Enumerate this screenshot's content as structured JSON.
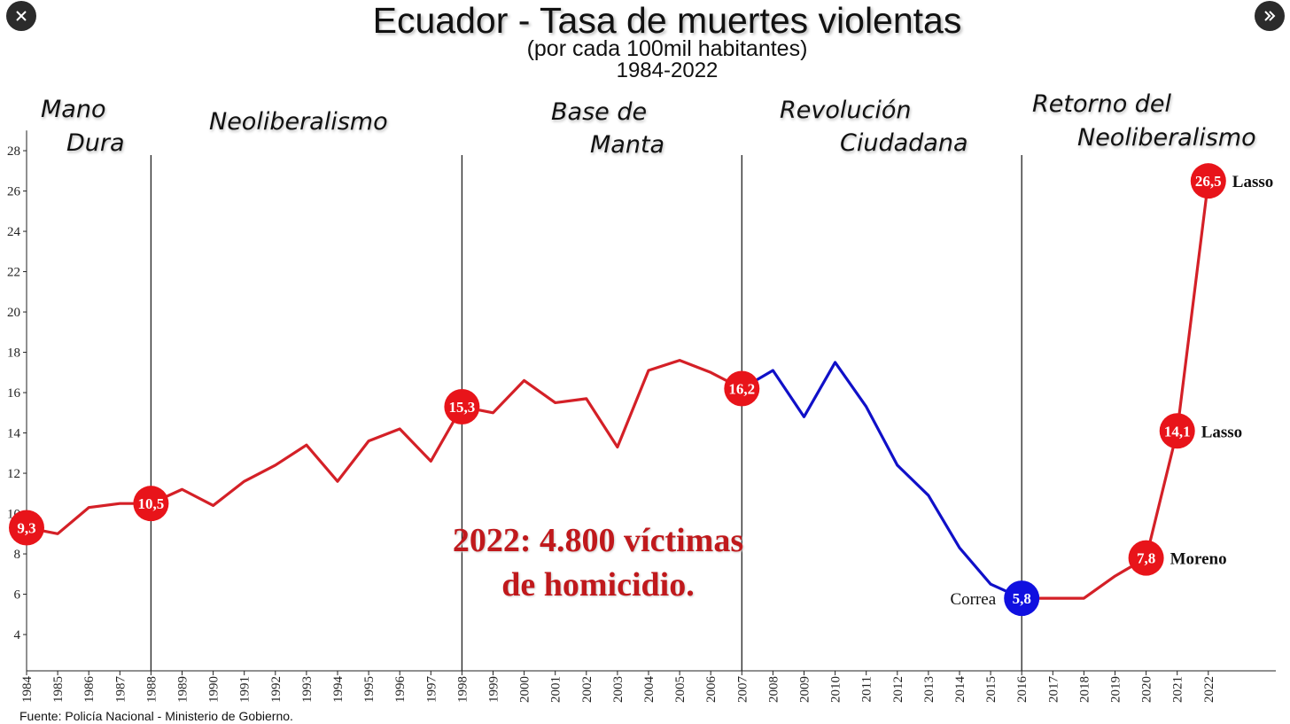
{
  "ui": {
    "close_icon": "close-icon",
    "next_icon": "double-chevron-right-icon"
  },
  "title": "Ecuador - Tasa de muertes violentas",
  "subtitle": "(por cada 100mil habitantes)",
  "years_label": "1984-2022",
  "eras": [
    "Mano",
    "Dura",
    "Neoliberalismo",
    "Base de",
    "Manta",
    "Revolución",
    "Ciudadana",
    "Retorno del",
    "Neoliberalismo"
  ],
  "callout": [
    "2022: 4.800 víctimas",
    "de homicidio."
  ],
  "source": "Fuente: Policía Nacional - Ministerio de Gobierno.",
  "colors": {
    "red_series": "#d42027",
    "blue_series": "#1010c8",
    "callout": "#c0191c"
  },
  "chart_data": {
    "type": "line",
    "x": [
      1984,
      1985,
      1986,
      1987,
      1988,
      1989,
      1990,
      1991,
      1992,
      1993,
      1994,
      1995,
      1996,
      1997,
      1998,
      1999,
      2000,
      2001,
      2002,
      2003,
      2004,
      2005,
      2006,
      2007,
      2008,
      2009,
      2010,
      2011,
      2012,
      2013,
      2014,
      2015,
      2016,
      2017,
      2018,
      2019,
      2020,
      2021,
      2022
    ],
    "y": [
      9.3,
      9.0,
      10.3,
      10.5,
      10.5,
      11.2,
      10.4,
      11.6,
      12.4,
      13.4,
      11.6,
      13.6,
      14.2,
      12.6,
      15.3,
      15.0,
      16.6,
      15.5,
      15.7,
      13.3,
      17.1,
      17.6,
      17.0,
      16.2,
      17.1,
      14.8,
      17.5,
      15.3,
      12.4,
      10.9,
      8.3,
      6.5,
      5.8,
      5.8,
      5.8,
      6.9,
      7.8,
      14.1,
      26.5
    ],
    "series": [
      {
        "color": "#d42027",
        "x_range": [
          1984,
          2007
        ]
      },
      {
        "color": "#1010c8",
        "x_range": [
          2007,
          2016
        ]
      },
      {
        "color": "#d42027",
        "x_range": [
          2016,
          2022
        ]
      }
    ],
    "highlighted": [
      {
        "year": 1984,
        "label": "9,3",
        "color": "#e8141a",
        "note": ""
      },
      {
        "year": 1988,
        "label": "10,5",
        "color": "#e8141a",
        "note": ""
      },
      {
        "year": 1998,
        "label": "15,3",
        "color": "#e8141a",
        "note": ""
      },
      {
        "year": 2007,
        "label": "16,2",
        "color": "#e8141a",
        "note": ""
      },
      {
        "year": 2016,
        "label": "5,8",
        "color": "#1010e0",
        "note": "Correa"
      },
      {
        "year": 2020,
        "label": "7,8",
        "color": "#e8141a",
        "note": "Moreno"
      },
      {
        "year": 2021,
        "label": "14,1",
        "color": "#e8141a",
        "note": "Lasso"
      },
      {
        "year": 2022,
        "label": "26,5",
        "color": "#e8141a",
        "note": "Lasso"
      }
    ],
    "separators": [
      1988,
      1998,
      2007,
      2016
    ],
    "yticks": [
      4,
      6,
      8,
      10,
      12,
      14,
      16,
      18,
      20,
      22,
      24,
      26,
      28
    ],
    "ylim": [
      2.2,
      29
    ],
    "xlim": [
      1984,
      2022
    ],
    "grid": false,
    "legend": "none"
  }
}
